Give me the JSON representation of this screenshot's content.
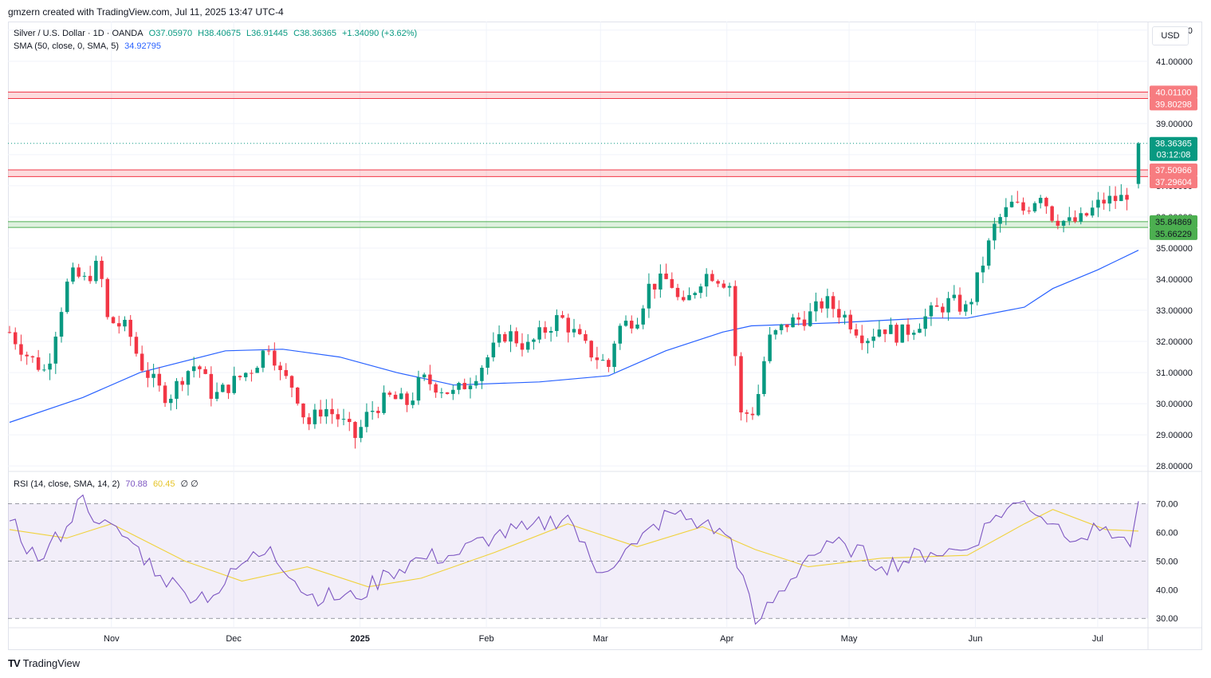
{
  "header": {
    "credit": "gmzern created with TradingView.com, Jul 11, 2025 13:47 UTC-4"
  },
  "legend": {
    "symbol": "Silver / U.S. Dollar · 1D · OANDA",
    "open": "O37.05970",
    "high": "H38.40675",
    "low": "L36.91445",
    "close": "C38.36365",
    "change": "+1.34090 (+3.62%)",
    "sma_label": "SMA (50, close, 0, SMA, 5)",
    "sma_value": "34.92795",
    "rsi_label": "RSI (14, close, SMA, 14, 2)",
    "rsi_value": "70.88",
    "rsi_ma_value": "60.45",
    "rsi_extra": "∅ ∅"
  },
  "currency": "USD",
  "brand": "TradingView",
  "colors": {
    "up": "#089981",
    "down": "#f23645",
    "sma": "#2962ff",
    "rsi": "#7e57c2",
    "rsi_ma": "#f0d23c",
    "resistance": "#f23645",
    "support": "#4caf50"
  },
  "chart_data": {
    "type": "candlestick",
    "price_axis": {
      "range": [
        27.85,
        42.2
      ],
      "ticks": [
        "28.00000",
        "29.00000",
        "30.00000",
        "31.00000",
        "32.00000",
        "33.00000",
        "34.00000",
        "35.00000",
        "36.00000",
        "37.00000",
        "38.00000",
        "39.00000",
        "40.00000",
        "41.00000",
        "42.00000"
      ],
      "tick_values": [
        28,
        29,
        30,
        31,
        32,
        33,
        34,
        35,
        36,
        37,
        38,
        39,
        40,
        41,
        42
      ]
    },
    "time_axis": {
      "labels": [
        "Nov",
        "Dec",
        "2025",
        "Feb",
        "Mar",
        "Apr",
        "May",
        "Jun",
        "Jul"
      ],
      "label_dates": [
        "2024-11-01",
        "2024-12-01",
        "2025-01-01",
        "2025-02-01",
        "2025-03-01",
        "2025-04-01",
        "2025-05-01",
        "2025-06-01",
        "2025-07-01"
      ],
      "start": "2024-10-07",
      "end": "2025-07-11"
    },
    "price_labels": [
      {
        "text": "40.01100",
        "value": 40.011,
        "kind": "resistance"
      },
      {
        "text": "39.80298",
        "value": 39.80298,
        "kind": "resistance"
      },
      {
        "text": "38.36365",
        "value": 38.36365,
        "kind": "last"
      },
      {
        "text": "03:12:08",
        "value": 38.36365,
        "kind": "countdown"
      },
      {
        "text": "37.50966",
        "value": 37.50966,
        "kind": "resistance"
      },
      {
        "text": "37.29604",
        "value": 37.29604,
        "kind": "resistance"
      },
      {
        "text": "35.84869",
        "value": 35.84869,
        "kind": "support"
      },
      {
        "text": "35.66229",
        "value": 35.66229,
        "kind": "support"
      }
    ],
    "zones": [
      {
        "kind": "resistance",
        "from": 39.80298,
        "to": 40.011
      },
      {
        "kind": "resistance",
        "from": 37.29604,
        "to": 37.50966
      },
      {
        "kind": "support",
        "from": 35.66229,
        "to": 35.84869
      }
    ],
    "close_series": [
      {
        "date": "2024-10-07",
        "close": 32.3
      },
      {
        "date": "2024-10-11",
        "close": 31.6
      },
      {
        "date": "2024-10-16",
        "close": 31.0
      },
      {
        "date": "2024-10-18",
        "close": 32.2
      },
      {
        "date": "2024-10-21",
        "close": 33.8
      },
      {
        "date": "2024-10-23",
        "close": 34.2
      },
      {
        "date": "2024-10-25",
        "close": 33.9
      },
      {
        "date": "2024-10-29",
        "close": 34.5
      },
      {
        "date": "2024-10-31",
        "close": 32.7
      },
      {
        "date": "2024-11-05",
        "close": 32.4
      },
      {
        "date": "2024-11-08",
        "close": 31.3
      },
      {
        "date": "2024-11-13",
        "close": 30.4
      },
      {
        "date": "2024-11-15",
        "close": 30.2
      },
      {
        "date": "2024-11-19",
        "close": 31.0
      },
      {
        "date": "2024-11-22",
        "close": 31.3
      },
      {
        "date": "2024-11-26",
        "close": 30.2
      },
      {
        "date": "2024-11-29",
        "close": 30.5
      },
      {
        "date": "2024-12-03",
        "close": 30.9
      },
      {
        "date": "2024-12-06",
        "close": 31.2
      },
      {
        "date": "2024-12-10",
        "close": 32.0
      },
      {
        "date": "2024-12-12",
        "close": 31.0
      },
      {
        "date": "2024-12-16",
        "close": 30.5
      },
      {
        "date": "2024-12-19",
        "close": 29.3
      },
      {
        "date": "2024-12-23",
        "close": 29.9
      },
      {
        "date": "2024-12-27",
        "close": 29.5
      },
      {
        "date": "2024-12-31",
        "close": 28.9
      },
      {
        "date": "2025-01-03",
        "close": 29.7
      },
      {
        "date": "2025-01-08",
        "close": 30.2
      },
      {
        "date": "2025-01-13",
        "close": 30.0
      },
      {
        "date": "2025-01-16",
        "close": 30.8
      },
      {
        "date": "2025-01-21",
        "close": 30.5
      },
      {
        "date": "2025-01-24",
        "close": 30.3
      },
      {
        "date": "2025-01-29",
        "close": 30.9
      },
      {
        "date": "2025-02-03",
        "close": 31.8
      },
      {
        "date": "2025-02-06",
        "close": 32.3
      },
      {
        "date": "2025-02-11",
        "close": 31.8
      },
      {
        "date": "2025-02-14",
        "close": 32.2
      },
      {
        "date": "2025-02-19",
        "close": 32.8
      },
      {
        "date": "2025-02-21",
        "close": 32.5
      },
      {
        "date": "2025-02-26",
        "close": 31.7
      },
      {
        "date": "2025-03-03",
        "close": 31.2
      },
      {
        "date": "2025-03-05",
        "close": 32.4
      },
      {
        "date": "2025-03-10",
        "close": 32.8
      },
      {
        "date": "2025-03-13",
        "close": 33.8
      },
      {
        "date": "2025-03-18",
        "close": 34.0
      },
      {
        "date": "2025-03-21",
        "close": 33.0
      },
      {
        "date": "2025-03-26",
        "close": 34.1
      },
      {
        "date": "2025-03-28",
        "close": 34.2
      },
      {
        "date": "2025-04-02",
        "close": 33.8
      },
      {
        "date": "2025-04-04",
        "close": 29.6
      },
      {
        "date": "2025-04-08",
        "close": 29.8
      },
      {
        "date": "2025-04-11",
        "close": 32.0
      },
      {
        "date": "2025-04-16",
        "close": 32.6
      },
      {
        "date": "2025-04-21",
        "close": 32.8
      },
      {
        "date": "2025-04-25",
        "close": 33.3
      },
      {
        "date": "2025-04-30",
        "close": 32.8
      },
      {
        "date": "2025-05-05",
        "close": 32.1
      },
      {
        "date": "2025-05-09",
        "close": 32.5
      },
      {
        "date": "2025-05-13",
        "close": 32.2
      },
      {
        "date": "2025-05-16",
        "close": 32.4
      },
      {
        "date": "2025-05-21",
        "close": 32.9
      },
      {
        "date": "2025-05-26",
        "close": 33.3
      },
      {
        "date": "2025-05-30",
        "close": 33.0
      },
      {
        "date": "2025-06-03",
        "close": 34.6
      },
      {
        "date": "2025-06-06",
        "close": 35.8
      },
      {
        "date": "2025-06-10",
        "close": 36.4
      },
      {
        "date": "2025-06-13",
        "close": 36.2
      },
      {
        "date": "2025-06-17",
        "close": 36.8
      },
      {
        "date": "2025-06-20",
        "close": 36.0
      },
      {
        "date": "2025-06-24",
        "close": 35.8
      },
      {
        "date": "2025-06-27",
        "close": 35.9
      },
      {
        "date": "2025-07-02",
        "close": 36.5
      },
      {
        "date": "2025-07-07",
        "close": 36.6
      },
      {
        "date": "2025-07-10",
        "close": 37.05
      },
      {
        "date": "2025-07-11",
        "close": 38.36
      }
    ],
    "last_candle": {
      "date": "2025-07-11",
      "open": 37.0597,
      "high": 38.40675,
      "low": 36.91445,
      "close": 38.36365
    },
    "sma_series": [
      {
        "date": "2024-10-07",
        "value": 29.4
      },
      {
        "date": "2024-10-25",
        "value": 30.2
      },
      {
        "date": "2024-11-08",
        "value": 31.0
      },
      {
        "date": "2024-11-29",
        "value": 31.7
      },
      {
        "date": "2024-12-13",
        "value": 31.75
      },
      {
        "date": "2024-12-27",
        "value": 31.5
      },
      {
        "date": "2025-01-10",
        "value": 31.0
      },
      {
        "date": "2025-01-24",
        "value": 30.6
      },
      {
        "date": "2025-02-14",
        "value": 30.7
      },
      {
        "date": "2025-03-03",
        "value": 30.9
      },
      {
        "date": "2025-03-17",
        "value": 31.7
      },
      {
        "date": "2025-03-31",
        "value": 32.3
      },
      {
        "date": "2025-04-07",
        "value": 32.5
      },
      {
        "date": "2025-04-28",
        "value": 32.6
      },
      {
        "date": "2025-05-20",
        "value": 32.75
      },
      {
        "date": "2025-05-30",
        "value": 32.75
      },
      {
        "date": "2025-06-13",
        "value": 33.1
      },
      {
        "date": "2025-06-20",
        "value": 33.7
      },
      {
        "date": "2025-07-01",
        "value": 34.3
      },
      {
        "date": "2025-07-11",
        "value": 34.93
      }
    ],
    "rsi_axis": {
      "range": [
        27,
        81
      ],
      "ticks": [
        "30.00",
        "40.00",
        "50.00",
        "60.00",
        "70.00"
      ],
      "tick_values": [
        30,
        40,
        50,
        60,
        70
      ],
      "band": [
        30,
        70
      ]
    },
    "rsi_series": [
      {
        "date": "2024-10-07",
        "value": 64
      },
      {
        "date": "2024-10-14",
        "value": 50
      },
      {
        "date": "2024-10-21",
        "value": 62
      },
      {
        "date": "2024-10-25",
        "value": 73
      },
      {
        "date": "2024-10-29",
        "value": 63
      },
      {
        "date": "2024-11-05",
        "value": 58
      },
      {
        "date": "2024-11-13",
        "value": 45
      },
      {
        "date": "2024-11-19",
        "value": 39
      },
      {
        "date": "2024-11-26",
        "value": 38
      },
      {
        "date": "2024-12-03",
        "value": 49
      },
      {
        "date": "2024-12-10",
        "value": 55
      },
      {
        "date": "2024-12-19",
        "value": 38
      },
      {
        "date": "2024-12-31",
        "value": 37
      },
      {
        "date": "2025-01-08",
        "value": 46
      },
      {
        "date": "2025-01-16",
        "value": 51
      },
      {
        "date": "2025-01-24",
        "value": 52
      },
      {
        "date": "2025-02-03",
        "value": 59
      },
      {
        "date": "2025-02-11",
        "value": 61
      },
      {
        "date": "2025-02-21",
        "value": 66
      },
      {
        "date": "2025-02-28",
        "value": 46
      },
      {
        "date": "2025-03-10",
        "value": 56
      },
      {
        "date": "2025-03-18",
        "value": 67
      },
      {
        "date": "2025-03-26",
        "value": 63
      },
      {
        "date": "2025-04-02",
        "value": 58
      },
      {
        "date": "2025-04-08",
        "value": 28
      },
      {
        "date": "2025-04-21",
        "value": 52
      },
      {
        "date": "2025-04-30",
        "value": 56
      },
      {
        "date": "2025-05-09",
        "value": 48
      },
      {
        "date": "2025-05-21",
        "value": 53
      },
      {
        "date": "2025-05-30",
        "value": 54
      },
      {
        "date": "2025-06-06",
        "value": 66
      },
      {
        "date": "2025-06-13",
        "value": 71
      },
      {
        "date": "2025-06-20",
        "value": 63
      },
      {
        "date": "2025-06-27",
        "value": 58
      },
      {
        "date": "2025-07-03",
        "value": 62
      },
      {
        "date": "2025-07-09",
        "value": 55
      },
      {
        "date": "2025-07-11",
        "value": 70.88
      }
    ],
    "rsi_ma_series": [
      {
        "date": "2024-10-07",
        "value": 61
      },
      {
        "date": "2024-10-21",
        "value": 58
      },
      {
        "date": "2024-11-01",
        "value": 63
      },
      {
        "date": "2024-11-19",
        "value": 50
      },
      {
        "date": "2024-12-03",
        "value": 43
      },
      {
        "date": "2024-12-19",
        "value": 48
      },
      {
        "date": "2025-01-03",
        "value": 41
      },
      {
        "date": "2025-01-16",
        "value": 44
      },
      {
        "date": "2025-02-03",
        "value": 53
      },
      {
        "date": "2025-02-21",
        "value": 63
      },
      {
        "date": "2025-03-10",
        "value": 55
      },
      {
        "date": "2025-03-26",
        "value": 62
      },
      {
        "date": "2025-04-08",
        "value": 54
      },
      {
        "date": "2025-04-21",
        "value": 48
      },
      {
        "date": "2025-05-09",
        "value": 51
      },
      {
        "date": "2025-05-30",
        "value": 52
      },
      {
        "date": "2025-06-13",
        "value": 63
      },
      {
        "date": "2025-06-20",
        "value": 68
      },
      {
        "date": "2025-07-03",
        "value": 61
      },
      {
        "date": "2025-07-11",
        "value": 60.45
      }
    ]
  }
}
